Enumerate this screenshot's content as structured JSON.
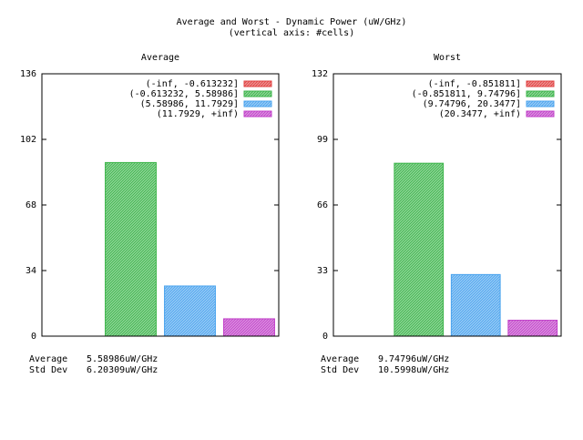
{
  "title": "Average and Worst - Dynamic Power (uW/GHz)",
  "subtitle": "(vertical axis: #cells)",
  "colors": {
    "red": "#e04040",
    "green": "#3cb44a",
    "blue": "#4aa3ee",
    "magenta": "#c03fc8",
    "frame": "#000000"
  },
  "chart_data": [
    {
      "type": "bar",
      "title": "Average",
      "categories": [
        "(-inf, -0.613232]",
        "(-0.613232, 5.58986]",
        "(5.58986, 11.7929]",
        "(11.7929, +inf)"
      ],
      "values": [
        0,
        90,
        26,
        9
      ],
      "ylim": [
        0,
        136
      ],
      "yticks": [
        "0",
        "34",
        "68",
        "102",
        "136"
      ],
      "legend_position": "top-right",
      "stats": [
        {
          "label": "Average",
          "value": "5.58986uW/GHz"
        },
        {
          "label": "Std Dev",
          "value": "6.20309uW/GHz"
        }
      ]
    },
    {
      "type": "bar",
      "title": "Worst",
      "categories": [
        "(-inf, -0.851811]",
        "(-0.851811, 9.74796]",
        "(9.74796, 20.3477]",
        "(20.3477, +inf)"
      ],
      "values": [
        0,
        87,
        31,
        8
      ],
      "ylim": [
        0,
        132
      ],
      "yticks": [
        "0",
        "33",
        "66",
        "99",
        "132"
      ],
      "legend_position": "top-right",
      "stats": [
        {
          "label": "Average",
          "value": "9.74796uW/GHz"
        },
        {
          "label": "Std Dev",
          "value": "10.5998uW/GHz"
        }
      ]
    }
  ]
}
